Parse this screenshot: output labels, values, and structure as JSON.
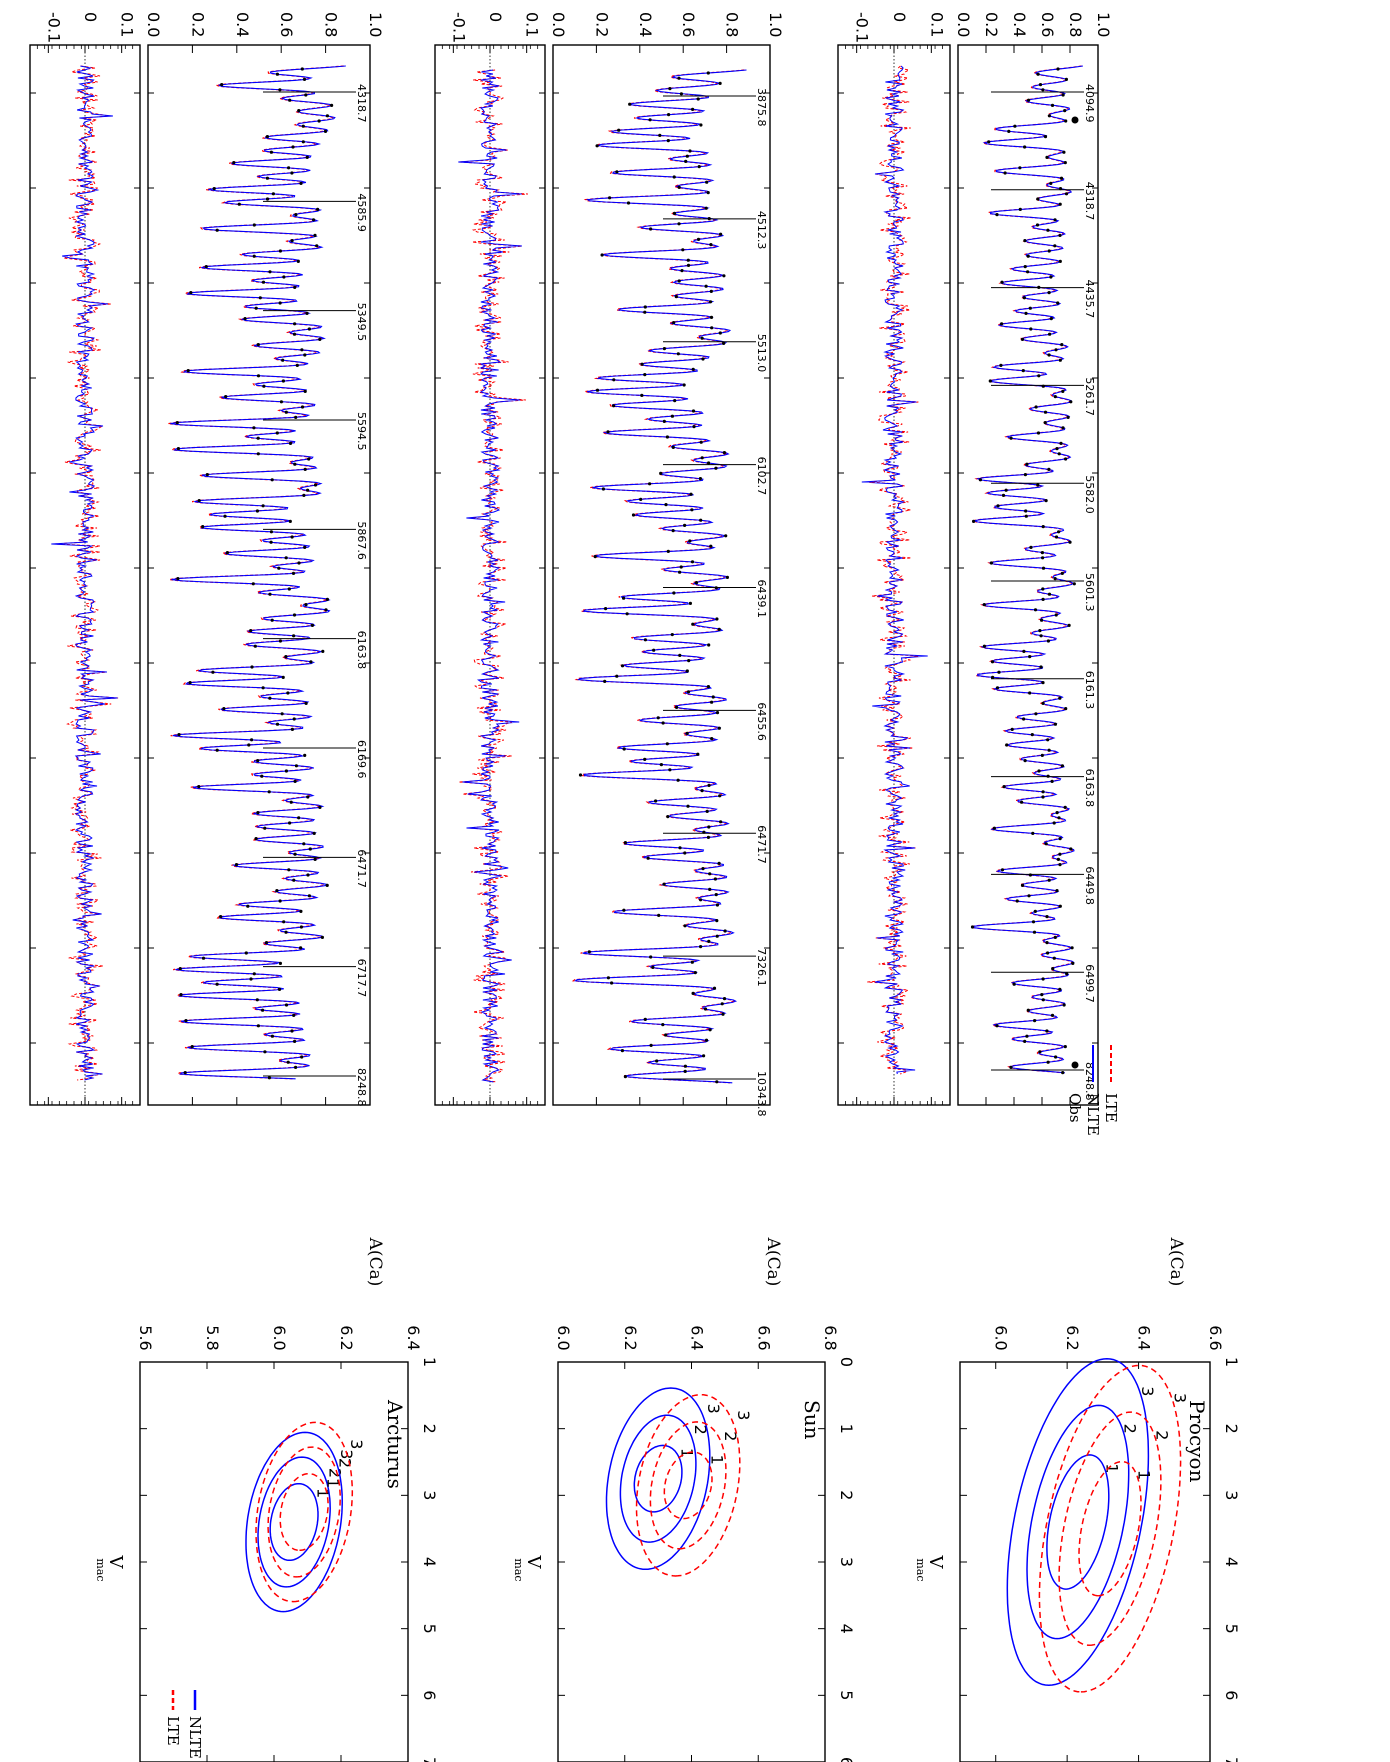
{
  "figure": {
    "rotation": "90deg clockwise",
    "colors": {
      "obs": "#000000",
      "nlte": "#0000ff",
      "lte": "#ff0000",
      "axes": "#000000"
    }
  },
  "chart_data": [
    {
      "type": "line",
      "star": "Procyon",
      "panel": "fit",
      "ylim": [
        0.0,
        1.0
      ],
      "yticks": [
        "0.0",
        "0.2",
        "0.4",
        "0.6",
        "0.8",
        "1.0"
      ],
      "line_labels": [
        "4094.9",
        "4318.7",
        "4435.7",
        "5261.7",
        "5582.0",
        "5601.3",
        "6161.3",
        "6163.8",
        "6449.8",
        "6499.7",
        "8248.8"
      ],
      "legend": [
        "Obs",
        "NLTE",
        "LTE"
      ],
      "legend_placement": "inside, toward the far end of the wavelength sequence",
      "series": [
        {
          "name": "Obs",
          "style": "black dots"
        },
        {
          "name": "NLTE",
          "style": "blue solid"
        },
        {
          "name": "LTE",
          "style": "red dashed"
        }
      ]
    },
    {
      "type": "line",
      "star": "Procyon",
      "panel": "residual",
      "ylim": [
        -0.15,
        0.15
      ],
      "yticks": [
        "-0.1",
        "0",
        "0.1"
      ],
      "zero_line": "dotted",
      "series": [
        {
          "name": "NLTE",
          "style": "blue solid"
        },
        {
          "name": "LTE",
          "style": "red dashed"
        }
      ]
    },
    {
      "type": "line",
      "star": "Sun",
      "panel": "fit",
      "ylim": [
        0.0,
        1.0
      ],
      "yticks": [
        "0.0",
        "0.2",
        "0.4",
        "0.6",
        "0.8",
        "1.0"
      ],
      "line_labels": [
        "3875.8",
        "4512.3",
        "5513.0",
        "6102.7",
        "6439.1",
        "6455.6",
        "6471.7",
        "7326.1",
        "10343.8"
      ],
      "series": [
        {
          "name": "Obs",
          "style": "black dots"
        },
        {
          "name": "NLTE",
          "style": "blue solid"
        },
        {
          "name": "LTE",
          "style": "red dashed"
        }
      ]
    },
    {
      "type": "line",
      "star": "Sun",
      "panel": "residual",
      "ylim": [
        -0.15,
        0.15
      ],
      "yticks": [
        "-0.1",
        "0",
        "0.1"
      ],
      "zero_line": "dotted",
      "series": [
        {
          "name": "NLTE",
          "style": "blue solid"
        },
        {
          "name": "LTE",
          "style": "red dashed"
        }
      ]
    },
    {
      "type": "line",
      "star": "Arcturus",
      "panel": "fit",
      "ylim": [
        0.0,
        1.0
      ],
      "yticks": [
        "0.0",
        "0.2",
        "0.4",
        "0.6",
        "0.8",
        "1.0"
      ],
      "line_labels": [
        "4318.7",
        "4585.9",
        "5349.5",
        "5594.5",
        "5867.6",
        "6163.8",
        "6169.6",
        "6471.7",
        "6717.7",
        "8248.8"
      ],
      "series": [
        {
          "name": "Obs",
          "style": "black dots"
        },
        {
          "name": "NLTE",
          "style": "blue solid"
        },
        {
          "name": "LTE",
          "style": "red dashed"
        }
      ]
    },
    {
      "type": "line",
      "star": "Arcturus",
      "panel": "residual",
      "ylim": [
        -0.15,
        0.15
      ],
      "yticks": [
        "-0.1",
        "0",
        "0.1"
      ],
      "zero_line": "dotted",
      "series": [
        {
          "name": "NLTE",
          "style": "blue solid"
        },
        {
          "name": "LTE",
          "style": "red dashed"
        }
      ]
    },
    {
      "type": "contour",
      "title": "Procyon",
      "xlabel": "V",
      "xlabel_sub": "mac",
      "ylabel": "A(Ca)",
      "xlim": [
        1,
        7
      ],
      "ylim": [
        5.9,
        6.6
      ],
      "xticks": [
        "1",
        "2",
        "3",
        "4",
        "5",
        "6",
        "7"
      ],
      "yticks": [
        "6.0",
        "6.2",
        "6.4",
        "6.6"
      ],
      "series": [
        {
          "name": "NLTE",
          "center": [
            3.4,
            6.23
          ],
          "angle_deg": -29,
          "contours": [
            {
              "level": "1",
              "a": 1.15,
              "b": 0.08
            },
            {
              "level": "2",
              "a": 2.0,
              "b": 0.13
            },
            {
              "level": "3",
              "a": 2.8,
              "b": 0.18
            }
          ]
        },
        {
          "name": "LTE",
          "center": [
            3.5,
            6.32
          ],
          "angle_deg": -29,
          "contours": [
            {
              "level": "1",
              "a": 1.15,
              "b": 0.08
            },
            {
              "level": "2",
              "a": 2.0,
              "b": 0.13
            },
            {
              "level": "3",
              "a": 2.8,
              "b": 0.18
            }
          ]
        }
      ]
    },
    {
      "type": "contour",
      "title": "Sun",
      "xlabel": "V",
      "xlabel_sub": "mac",
      "ylabel": "A(Ca)",
      "xlim": [
        0,
        6
      ],
      "ylim": [
        6.0,
        6.8
      ],
      "xticks": [
        "0",
        "1",
        "2",
        "3",
        "4",
        "5",
        "6"
      ],
      "yticks": [
        "6.0",
        "6.2",
        "6.4",
        "6.6",
        "6.8"
      ],
      "series": [
        {
          "name": "NLTE",
          "center": [
            1.75,
            6.3
          ],
          "angle_deg": -25,
          "contours": [
            {
              "level": "1",
              "a": 0.55,
              "b": 0.07
            },
            {
              "level": "2",
              "a": 1.05,
              "b": 0.11
            },
            {
              "level": "3",
              "a": 1.5,
              "b": 0.15
            }
          ]
        },
        {
          "name": "LTE",
          "center": [
            1.85,
            6.39
          ],
          "angle_deg": -25,
          "contours": [
            {
              "level": "1",
              "a": 0.55,
              "b": 0.07
            },
            {
              "level": "2",
              "a": 1.05,
              "b": 0.11
            },
            {
              "level": "3",
              "a": 1.5,
              "b": 0.15
            }
          ]
        }
      ]
    },
    {
      "type": "contour",
      "title": "Arcturus",
      "xlabel": "V",
      "xlabel_sub": "mac",
      "ylabel": "A(Ca)",
      "xlim": [
        1,
        7
      ],
      "ylim": [
        5.6,
        6.4
      ],
      "xticks": [
        "1",
        "2",
        "3",
        "4",
        "5",
        "6",
        "7"
      ],
      "yticks": [
        "5.6",
        "5.8",
        "6.0",
        "6.2",
        "6.4"
      ],
      "legend": [
        "NLTE",
        "LTE"
      ],
      "legend_placement": "bottom-right (rotated)",
      "series": [
        {
          "name": "NLTE",
          "center": [
            3.4,
            6.06
          ],
          "angle_deg": -22,
          "contours": [
            {
              "level": "1",
              "a": 0.62,
              "b": 0.07
            },
            {
              "level": "2",
              "a": 1.05,
              "b": 0.105
            },
            {
              "level": "3",
              "a": 1.45,
              "b": 0.14
            }
          ]
        },
        {
          "name": "LTE",
          "center": [
            3.25,
            6.09
          ],
          "angle_deg": -22,
          "contours": [
            {
              "level": "1",
              "a": 0.62,
              "b": 0.07
            },
            {
              "level": "2",
              "a": 1.05,
              "b": 0.105
            },
            {
              "level": "3",
              "a": 1.45,
              "b": 0.14
            }
          ]
        }
      ]
    }
  ]
}
